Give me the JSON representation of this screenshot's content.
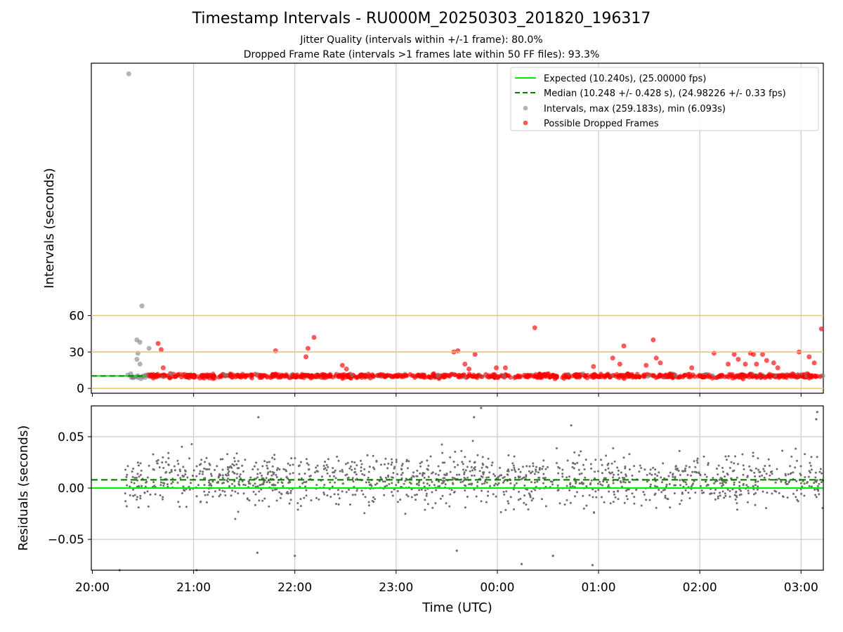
{
  "header": {
    "title": "Timestamp Intervals - RU000M_20250303_201820_196317",
    "subtitle1": "Jitter Quality (intervals within +/-1 frame): 80.0%",
    "subtitle2": "Dropped Frame Rate (intervals >1 frames late within 50 FF files): 93.3%"
  },
  "colors": {
    "expected": "#00ee00",
    "median": "#008000",
    "intervals": "#808080",
    "dropped": "#ff0000",
    "threshold": "#f5c64a",
    "grid": "#cccccc"
  },
  "chart_data": [
    {
      "type": "scatter",
      "ylabel": "Intervals (seconds)",
      "x_unit": "hours since 20:00 UTC",
      "xlim": [
        -0.01,
        7.22
      ],
      "ylim": [
        -4,
        268
      ],
      "yticks": [
        0,
        30,
        60
      ],
      "xtick_labels": [
        "20:00",
        "21:00",
        "22:00",
        "23:00",
        "00:00",
        "01:00",
        "02:00",
        "03:00"
      ],
      "horizontal_lines": [
        0,
        30,
        60
      ],
      "expected": 10.24,
      "median": 10.248,
      "legend_position": "top-right",
      "legend": [
        "Expected (10.240s), (25.00000 fps)",
        "Median (10.248 +/- 0.428 s), (24.98226 +/- 0.33 fps)",
        "Intervals, max (259.183s), min (6.093s)",
        "Possible Dropped Frames"
      ],
      "series": [
        {
          "name": "Intervals, max (259.183s), min (6.093s)",
          "points": [
            [
              0.36,
              259.2
            ],
            [
              0.49,
              68
            ],
            [
              0.44,
              40
            ],
            [
              0.47,
              38
            ],
            [
              0.45,
              29
            ],
            [
              0.44,
              24
            ],
            [
              0.47,
              20
            ],
            [
              0.56,
              33
            ],
            [
              0.38,
              12
            ],
            [
              0.35,
              11
            ],
            [
              0.52,
              9
            ],
            [
              0.48,
              8
            ]
          ]
        },
        {
          "name": "Possible Dropped Frames",
          "points": [
            [
              0.65,
              37
            ],
            [
              0.68,
              32
            ],
            [
              0.7,
              17
            ],
            [
              1.81,
              31
            ],
            [
              2.11,
              26
            ],
            [
              2.13,
              33
            ],
            [
              2.19,
              42
            ],
            [
              2.47,
              19
            ],
            [
              2.51,
              16
            ],
            [
              3.57,
              30
            ],
            [
              3.61,
              31
            ],
            [
              3.68,
              20
            ],
            [
              3.72,
              16
            ],
            [
              3.78,
              28
            ],
            [
              3.99,
              17
            ],
            [
              4.08,
              17
            ],
            [
              4.37,
              50
            ],
            [
              4.95,
              18
            ],
            [
              5.14,
              25
            ],
            [
              5.21,
              20
            ],
            [
              5.25,
              35
            ],
            [
              5.47,
              19
            ],
            [
              5.54,
              40
            ],
            [
              5.57,
              25
            ],
            [
              5.61,
              21
            ],
            [
              5.92,
              17
            ],
            [
              6.14,
              29
            ],
            [
              6.28,
              20
            ],
            [
              6.34,
              28
            ],
            [
              6.38,
              24
            ],
            [
              6.45,
              20
            ],
            [
              6.5,
              29
            ],
            [
              6.53,
              28
            ],
            [
              6.56,
              20
            ],
            [
              6.62,
              28
            ],
            [
              6.66,
              23
            ],
            [
              6.73,
              21
            ],
            [
              6.77,
              17
            ],
            [
              6.98,
              30
            ],
            [
              7.08,
              26
            ],
            [
              7.13,
              21
            ],
            [
              7.2,
              49
            ]
          ]
        }
      ]
    },
    {
      "type": "scatter",
      "xlabel": "Time (UTC)",
      "ylabel": "Residuals (seconds)",
      "x_unit": "hours since 20:00 UTC",
      "xlim": [
        -0.01,
        7.22
      ],
      "ylim": [
        -0.08,
        0.08
      ],
      "yticks": [
        -0.05,
        0.0,
        0.05
      ],
      "ytick_labels": [
        "−0.05",
        "0.00",
        "0.05"
      ],
      "xtick_labels": [
        "20:00",
        "21:00",
        "22:00",
        "23:00",
        "00:00",
        "01:00",
        "02:00",
        "03:00"
      ],
      "expected_residual": 0.0,
      "median_residual": 0.008,
      "series": [
        {
          "name": "Residuals",
          "outliers": [
            [
              1.64,
              0.069
            ],
            [
              4.94,
              -0.075
            ],
            [
              4.73,
              0.061
            ],
            [
              3.84,
              0.078
            ],
            [
              3.77,
              0.069
            ],
            [
              7.16,
              0.074
            ],
            [
              7.15,
              0.067
            ],
            [
              0.27,
              -0.08
            ],
            [
              1.03,
              -0.08
            ],
            [
              4.24,
              -0.074
            ],
            [
              4.55,
              -0.066
            ],
            [
              3.6,
              -0.061
            ],
            [
              1.63,
              -0.063
            ],
            [
              2.0,
              -0.066
            ]
          ]
        }
      ]
    }
  ]
}
